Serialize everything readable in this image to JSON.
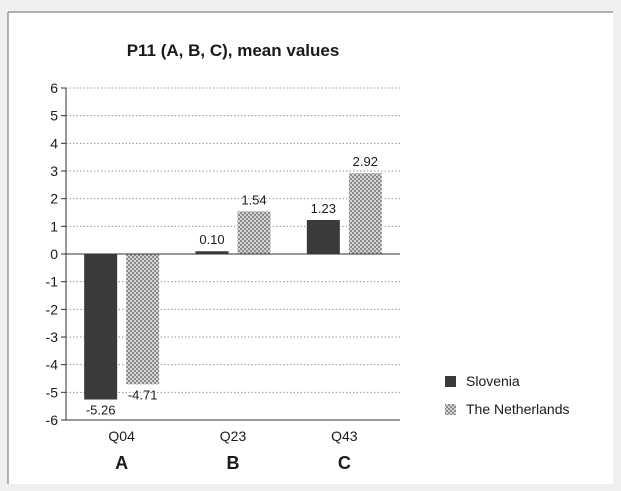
{
  "chart_data": {
    "type": "bar",
    "title": "P11 (A, B, C), mean values",
    "categories": [
      "Q04",
      "Q23",
      "Q43"
    ],
    "groups": [
      "A",
      "B",
      "C"
    ],
    "series": [
      {
        "name": "Slovenia",
        "values": [
          -5.26,
          0.1,
          1.23
        ],
        "labels": [
          "-5.26",
          "0.10",
          "1.23"
        ],
        "color": "#3a3a3a",
        "pattern": "solid"
      },
      {
        "name": "The Netherlands",
        "values": [
          -4.71,
          1.54,
          2.92
        ],
        "labels": [
          "-4.71",
          "1.54",
          "2.92"
        ],
        "color": "#a8a8a8",
        "pattern": "checkered"
      }
    ],
    "ylim": [
      -6,
      6
    ],
    "yticks": [
      6,
      5,
      4,
      3,
      2,
      1,
      0,
      -1,
      -2,
      -3,
      -4,
      -5,
      -6
    ],
    "grid": true,
    "legend": "right"
  }
}
